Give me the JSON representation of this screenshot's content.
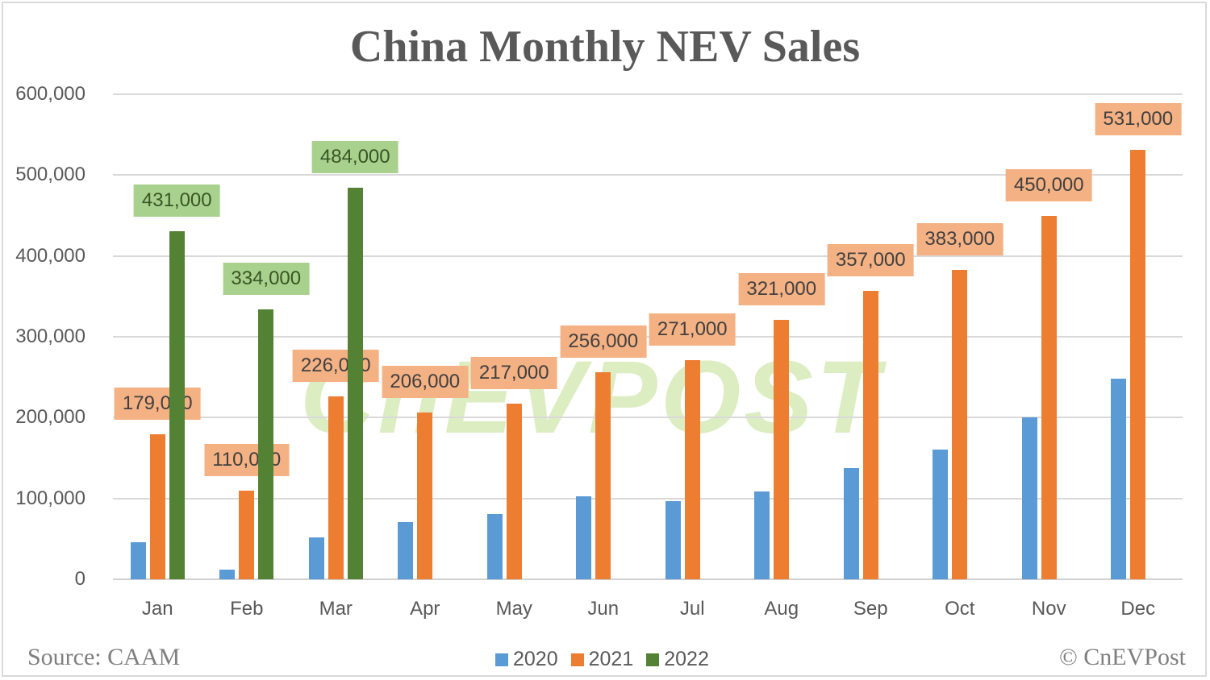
{
  "title": "China Monthly NEV Sales",
  "footer": {
    "source": "Source: CAAM",
    "copyright": "© CnEVPost"
  },
  "watermark": "CnEVPOST",
  "legend": [
    {
      "label": "2020",
      "color": "#5b9bd5"
    },
    {
      "label": "2021",
      "color": "#ed7d31"
    },
    {
      "label": "2022",
      "color": "#548235"
    }
  ],
  "y_ticks": [
    "0",
    "100,000",
    "200,000",
    "300,000",
    "400,000",
    "500,000",
    "600,000"
  ],
  "x_ticks": [
    "Jan",
    "Feb",
    "Mar",
    "Apr",
    "May",
    "Jun",
    "Jul",
    "Aug",
    "Sep",
    "Oct",
    "Nov",
    "Dec"
  ],
  "data_labels": {
    "2021": [
      "179,000",
      "110,000",
      "226,000",
      "206,000",
      "217,000",
      "256,000",
      "271,000",
      "321,000",
      "357,000",
      "383,000",
      "450,000",
      "531,000"
    ],
    "2022": [
      "431,000",
      "334,000",
      "484,000"
    ]
  },
  "chart_data": {
    "type": "bar",
    "title": "China Monthly NEV Sales",
    "xlabel": "",
    "ylabel": "",
    "ylim": [
      0,
      600000
    ],
    "grid": true,
    "legend_position": "bottom",
    "categories": [
      "Jan",
      "Feb",
      "Mar",
      "Apr",
      "May",
      "Jun",
      "Jul",
      "Aug",
      "Sep",
      "Oct",
      "Nov",
      "Dec"
    ],
    "series": [
      {
        "name": "2020",
        "color": "#5b9bd5",
        "values": [
          46000,
          12000,
          52000,
          71000,
          81000,
          103000,
          97000,
          109000,
          138000,
          160000,
          200000,
          248000
        ]
      },
      {
        "name": "2021",
        "color": "#ed7d31",
        "values": [
          179000,
          110000,
          226000,
          206000,
          217000,
          256000,
          271000,
          321000,
          357000,
          383000,
          450000,
          531000
        ]
      },
      {
        "name": "2022",
        "color": "#548235",
        "values": [
          431000,
          334000,
          484000,
          null,
          null,
          null,
          null,
          null,
          null,
          null,
          null,
          null
        ]
      }
    ],
    "annotations": [
      "Source: CAAM",
      "© CnEVPost"
    ]
  }
}
